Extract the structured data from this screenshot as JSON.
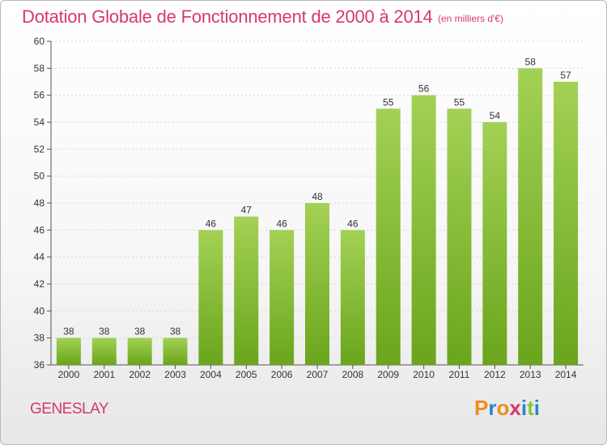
{
  "title": "Dotation Globale de Fonctionnement de 2000 à 2014",
  "subtitle": "(en milliers d'€)",
  "place": "GENESLAY",
  "logo": {
    "text": "Proxiti",
    "letters": [
      "P",
      "r",
      "o",
      "x",
      "i",
      "t",
      "i"
    ],
    "colors": [
      "#f08c1e",
      "#2a86c8",
      "#f08c1e",
      "#d63a66",
      "#2a86c8",
      "#8cc23f",
      "#2a86c8"
    ]
  },
  "colors": {
    "bar_top": "#a3d155",
    "bar_bottom": "#6aa51c",
    "title": "#d63a66",
    "grid": "#d8d8d8"
  },
  "chart_data": {
    "type": "bar",
    "title": "Dotation Globale de Fonctionnement de 2000 à 2014",
    "subtitle": "(en milliers d'€)",
    "categories": [
      "2000",
      "2001",
      "2002",
      "2003",
      "2004",
      "2005",
      "2006",
      "2007",
      "2008",
      "2009",
      "2010",
      "2011",
      "2012",
      "2013",
      "2014"
    ],
    "values": [
      38,
      38,
      38,
      38,
      46,
      47,
      46,
      48,
      46,
      55,
      56,
      55,
      54,
      58,
      57
    ],
    "ylim": [
      36,
      60
    ],
    "yticks": [
      36,
      38,
      40,
      42,
      44,
      46,
      48,
      50,
      52,
      54,
      56,
      58,
      60
    ],
    "grid": true,
    "data_labels": true
  }
}
